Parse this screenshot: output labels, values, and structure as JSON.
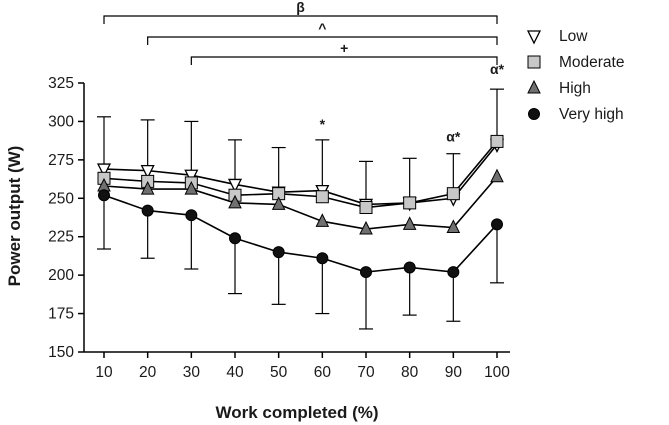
{
  "chart_data": {
    "type": "line",
    "xlabel": "Work completed (%)",
    "ylabel": "Power output (W)",
    "x": [
      10,
      20,
      30,
      40,
      50,
      60,
      70,
      80,
      90,
      100
    ],
    "xticks": [
      "10",
      "20",
      "30",
      "40",
      "50",
      "60",
      "70",
      "80",
      "90",
      "100"
    ],
    "ylim": [
      150,
      325
    ],
    "yticks": [
      "150",
      "175",
      "200",
      "225",
      "250",
      "275",
      "300",
      "325"
    ],
    "series": [
      {
        "name": "Low",
        "marker": "triangle-down-open",
        "fill": "#ffffff",
        "color": "#000000",
        "values": [
          269,
          268,
          265,
          259,
          254,
          255,
          246,
          247,
          250,
          285
        ],
        "error_up": [
          303,
          301,
          300,
          288,
          283,
          288,
          274,
          276,
          279,
          321
        ]
      },
      {
        "name": "Moderate",
        "marker": "square",
        "fill": "#c8c8c8",
        "color": "#000000",
        "values": [
          263,
          261,
          260,
          252,
          253,
          251,
          244,
          247,
          253,
          287
        ],
        "error_up": null
      },
      {
        "name": "High",
        "marker": "triangle-up",
        "fill": "#707070",
        "color": "#000000",
        "values": [
          258,
          256,
          256,
          247,
          246,
          235,
          230,
          233,
          231,
          264
        ],
        "error_up": null
      },
      {
        "name": "Very high",
        "marker": "circle",
        "fill": "#111111",
        "color": "#000000",
        "values": [
          252,
          242,
          239,
          224,
          215,
          211,
          202,
          205,
          202,
          233
        ],
        "error_down": [
          217,
          211,
          204,
          188,
          181,
          175,
          165,
          174,
          170,
          195
        ]
      }
    ],
    "annotations": [
      {
        "x": 60,
        "y": 295,
        "text": "*"
      },
      {
        "x": 90,
        "y": 287,
        "text": "α*"
      },
      {
        "x": 100,
        "y": 331,
        "text": "α*"
      }
    ],
    "brackets": [
      {
        "label": "β",
        "x_start": 10,
        "x_end": 100
      },
      {
        "label": "^",
        "x_start": 20,
        "x_end": 100
      },
      {
        "label": "+",
        "x_start": 30,
        "x_end": 100
      }
    ],
    "legend_position": "top-right",
    "grid": false
  }
}
